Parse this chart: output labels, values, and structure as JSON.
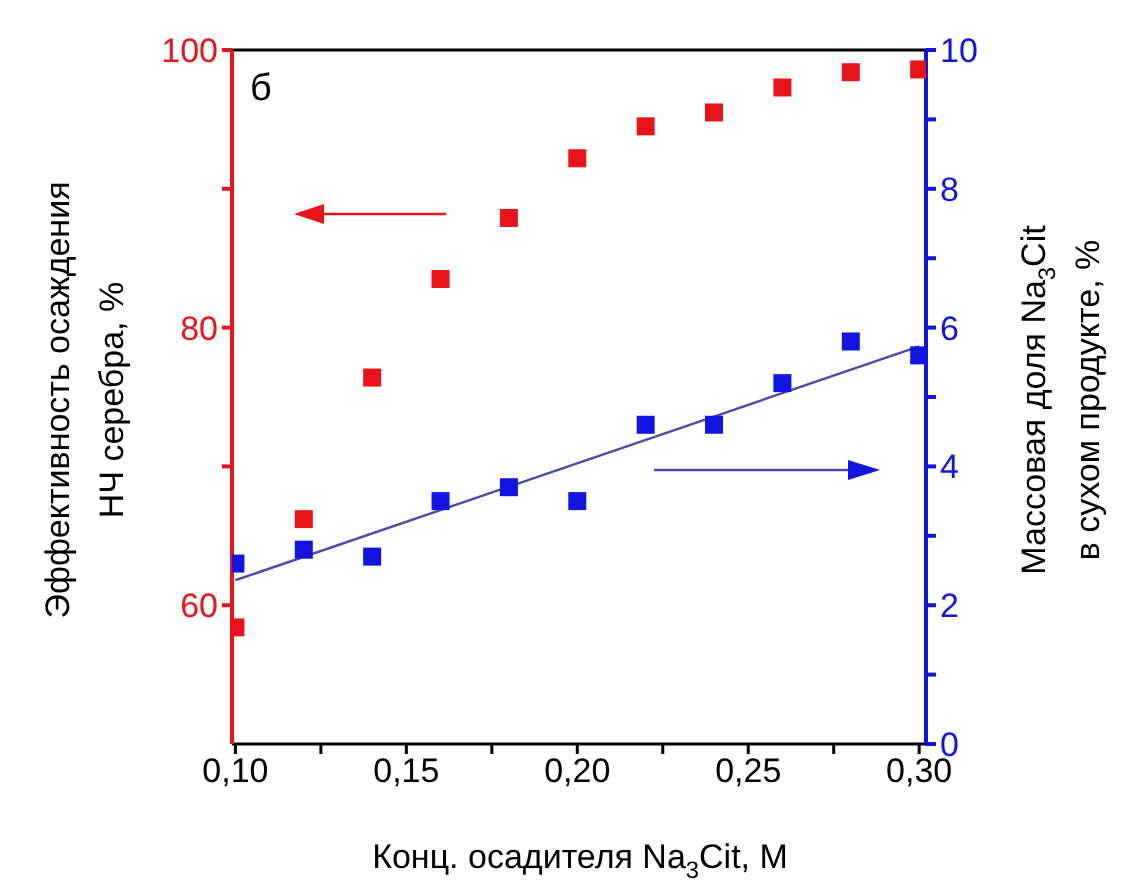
{
  "chart_data": {
    "type": "scatter",
    "xlabel": "Конц. осадителя Na$_{3}$Cit, M",
    "ylabel": "Эффективность осаждения\nНЧ серебра, %",
    "y2label": "Массовая доля Na$_{3}$Cit\nв сухом продукте, %",
    "annotations": [
      "б"
    ],
    "x": [
      0.1,
      0.12,
      0.14,
      0.16,
      0.18,
      0.2,
      0.22,
      0.24,
      0.26,
      0.28,
      0.3
    ],
    "series": [
      {
        "color": "#e8141b",
        "values": [
          58.4,
          66.2,
          76.4,
          83.5,
          87.9,
          92.2,
          94.5,
          95.5,
          97.3,
          98.4,
          98.6
        ]
      },
      {
        "color": "#1414e0",
        "axis": "y2",
        "values": [
          2.6,
          2.8,
          2.7,
          3.5,
          3.7,
          3.5,
          4.6,
          4.6,
          5.2,
          5.8,
          5.6
        ]
      },
      {
        "type": "line",
        "marker": "none",
        "color": "#4a4aa8",
        "axis": "y2",
        "x": [
          0.1,
          0.3
        ],
        "values": [
          2.36,
          5.73
        ]
      }
    ],
    "xlim": [
      0.099,
      0.302
    ],
    "xticks": [
      {
        "value": 0.1,
        "label": "0,10"
      },
      {
        "value": 0.125,
        "label": null
      },
      {
        "value": 0.15,
        "label": "0,15"
      },
      {
        "value": 0.175,
        "label": null
      },
      {
        "value": 0.2,
        "label": "0,20"
      },
      {
        "value": 0.225,
        "label": null
      },
      {
        "value": 0.25,
        "label": "0,25"
      },
      {
        "value": 0.275,
        "label": null
      },
      {
        "value": 0.3,
        "label": "0,30"
      }
    ],
    "ylim": [
      50,
      100
    ],
    "yticks": [
      60,
      {
        "value": 70,
        "label": null
      },
      80,
      {
        "value": 90,
        "label": null
      },
      100
    ],
    "y2lim": [
      0,
      10
    ],
    "y2ticks": [
      0,
      {
        "value": 1,
        "label": null
      },
      2,
      {
        "value": 3,
        "label": null
      },
      4,
      {
        "value": 5,
        "label": null
      },
      6,
      {
        "value": 7,
        "label": null
      },
      8,
      {
        "value": 9,
        "label": null
      },
      10
    ],
    "marker": "square",
    "grid": false,
    "legend": false
  }
}
